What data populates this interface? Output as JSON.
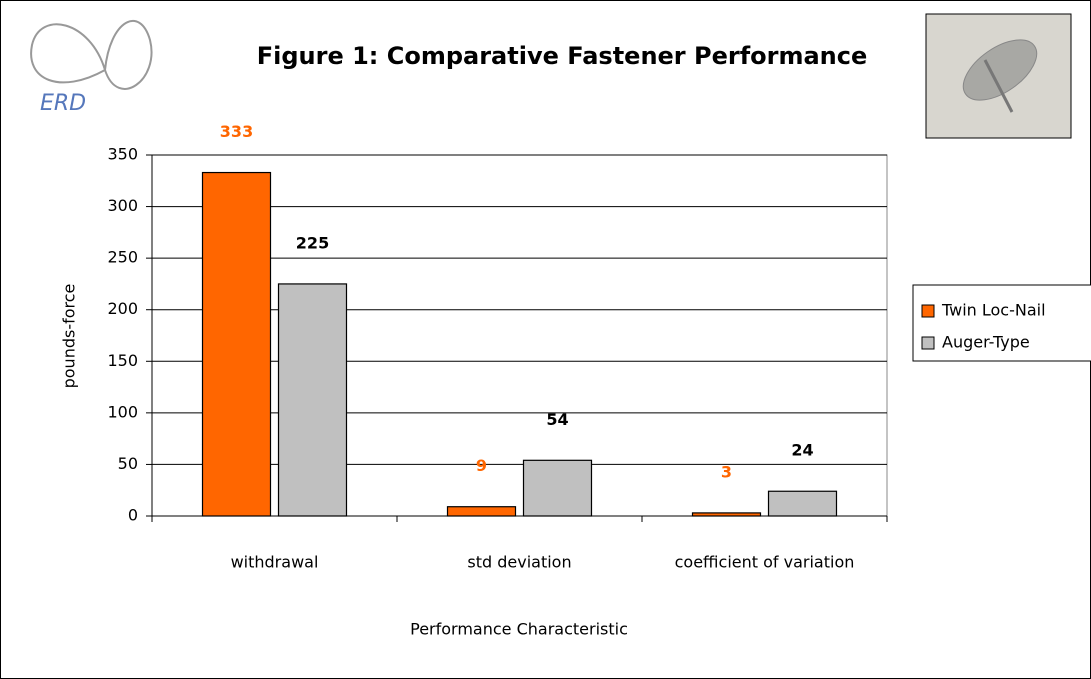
{
  "chart_data": {
    "type": "bar",
    "title": "Figure 1:  Comparative Fastener Performance",
    "logo_text": "ERD",
    "categories": [
      "withdrawal",
      "std deviation",
      "coefficient of variation"
    ],
    "series": [
      {
        "name": "Twin Loc-Nail",
        "color": "#ff6600",
        "label_color": "#ff6600",
        "values": [
          333,
          9,
          3
        ]
      },
      {
        "name": "Auger-Type",
        "color": "#c0c0c0",
        "label_color": "#000000",
        "values": [
          225,
          54,
          24
        ]
      }
    ],
    "ylim": [
      0,
      350
    ],
    "yticks": [
      0,
      50,
      100,
      150,
      200,
      250,
      300,
      350
    ],
    "y_label": "pounds-force",
    "x_label": "Performance Characteristic",
    "grid": true,
    "legend": "right"
  }
}
